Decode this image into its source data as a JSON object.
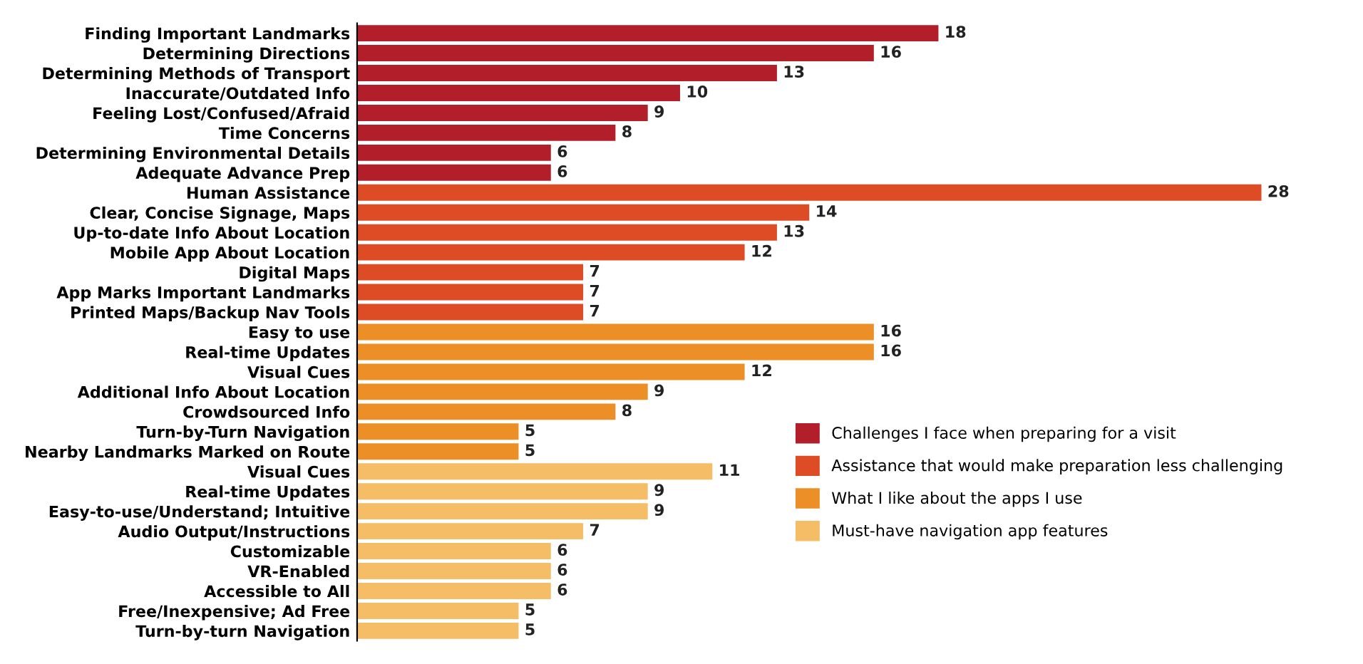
{
  "chart_data": {
    "type": "bar",
    "orientation": "horizontal",
    "data_labels": true,
    "grid": false,
    "legend": "bottom right",
    "categories": [
      "Finding Important Landmarks",
      "Determining Directions",
      "Determining Methods of Transport",
      "Inaccurate/Outdated Info",
      "Feeling Lost/Confused/Afraid",
      "Time Concerns",
      "Determining Environmental Details",
      "Adequate Advance Prep",
      "Human Assistance",
      "Clear, Concise Signage, Maps",
      "Up-to-date Info About Location",
      "Mobile App About Location",
      "Digital Maps",
      "App Marks Important Landmarks",
      "Printed Maps/Backup Nav Tools",
      "Easy to use",
      "Real-time Updates",
      "Visual Cues",
      "Additional Info About Location",
      "Crowdsourced Info",
      "Turn-by-Turn Navigation",
      "Nearby Landmarks Marked on Route",
      "Visual Cues",
      "Real-time Updates",
      "Easy-to-use/Understand; Intuitive",
      "Audio Output/Instructions",
      "Customizable",
      "VR-Enabled",
      "Accessible to All",
      "Free/Inexpensive; Ad Free",
      "Turn-by-turn Navigation"
    ],
    "series": [
      {
        "name": "Challenges I face when preparing for a visit",
        "color": "#b21f2a",
        "values": [
          18,
          16,
          13,
          10,
          9,
          8,
          6,
          6,
          null,
          null,
          null,
          null,
          null,
          null,
          null,
          null,
          null,
          null,
          null,
          null,
          null,
          null,
          null,
          null,
          null,
          null,
          null,
          null,
          null,
          null,
          null
        ]
      },
      {
        "name": "Assistance that would make preparation less challenging",
        "color": "#de4c26",
        "values": [
          null,
          null,
          null,
          null,
          null,
          null,
          null,
          null,
          28,
          14,
          13,
          12,
          7,
          7,
          7,
          null,
          null,
          null,
          null,
          null,
          null,
          null,
          null,
          null,
          null,
          null,
          null,
          null,
          null,
          null,
          null
        ]
      },
      {
        "name": "What I like about the apps I use",
        "color": "#ec8f26",
        "values": [
          null,
          null,
          null,
          null,
          null,
          null,
          null,
          null,
          null,
          null,
          null,
          null,
          null,
          null,
          null,
          16,
          16,
          12,
          9,
          8,
          5,
          5,
          null,
          null,
          null,
          null,
          null,
          null,
          null,
          null,
          null
        ]
      },
      {
        "name": "Must-have navigation app features",
        "color": "#f4bd66",
        "values": [
          null,
          null,
          null,
          null,
          null,
          null,
          null,
          null,
          null,
          null,
          null,
          null,
          null,
          null,
          null,
          null,
          null,
          null,
          null,
          null,
          null,
          null,
          11,
          9,
          9,
          7,
          6,
          6,
          6,
          5,
          5
        ]
      }
    ]
  }
}
